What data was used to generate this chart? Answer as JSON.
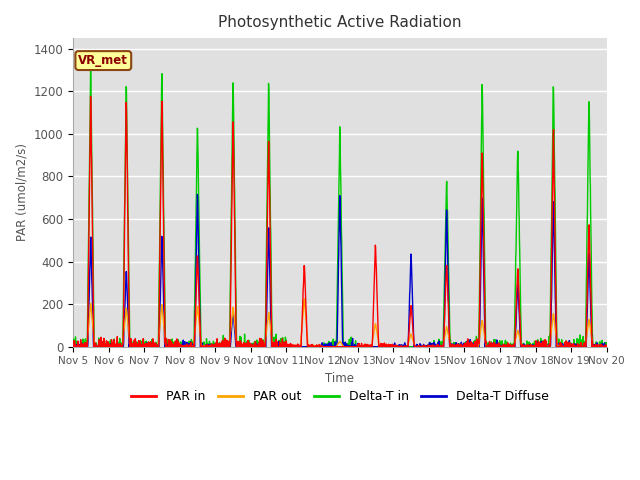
{
  "title": "Photosynthetic Active Radiation",
  "ylabel": "PAR (umol/m2/s)",
  "xlabel": "Time",
  "ylim": [
    0,
    1450
  ],
  "xlim_days": [
    5,
    20
  ],
  "annotation_label": "VR_met",
  "legend_labels": [
    "PAR in",
    "PAR out",
    "Delta-T in",
    "Delta-T Diffuse"
  ],
  "line_colors": [
    "#ff0000",
    "#ffa500",
    "#00cc00",
    "#0000cc"
  ],
  "background_color": "#ffffff",
  "plot_bg_color": "#e0e0e0",
  "xtick_labels": [
    "Nov 5",
    "Nov 6",
    "Nov 7",
    "Nov 8",
    "Nov 9",
    "Nov 10",
    "Nov 11",
    "Nov 12",
    "Nov 13",
    "Nov 14",
    "Nov 15",
    "Nov 16",
    "Nov 17",
    "Nov 18",
    "Nov 19",
    "Nov 20"
  ],
  "daily_peaks": {
    "PAR_in": [
      1195,
      1180,
      1190,
      440,
      1100,
      1000,
      400,
      0,
      490,
      200,
      400,
      950,
      380,
      1030,
      590,
      0
    ],
    "PAR_out": [
      210,
      185,
      200,
      195,
      190,
      165,
      230,
      25,
      110,
      60,
      95,
      125,
      80,
      160,
      130,
      0
    ],
    "DeltaT_in": [
      1310,
      1250,
      1325,
      1060,
      1285,
      1260,
      0,
      1030,
      0,
      0,
      810,
      1270,
      955,
      1275,
      1195,
      0
    ],
    "DeltaT_diff": [
      525,
      370,
      540,
      745,
      175,
      575,
      0,
      745,
      0,
      460,
      665,
      720,
      310,
      715,
      450,
      0
    ]
  }
}
